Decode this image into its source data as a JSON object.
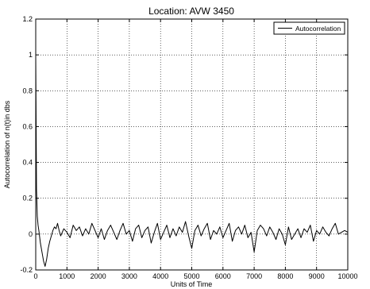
{
  "chart_data": {
    "type": "line",
    "title": "Location: AVW 3450",
    "xlabel": "Units of Time",
    "ylabel": "Autocorrelation of n(t)in dbs",
    "xlim": [
      0,
      10000
    ],
    "ylim": [
      -0.2,
      1.2
    ],
    "xticks": [
      0,
      1000,
      2000,
      3000,
      4000,
      5000,
      6000,
      7000,
      8000,
      9000,
      10000
    ],
    "yticks": [
      -0.2,
      0,
      0.2,
      0.4,
      0.6,
      0.8,
      1,
      1.2
    ],
    "xtick_labels": [
      "0",
      "1000",
      "2000",
      "3000",
      "4000",
      "5000",
      "6000",
      "7000",
      "8000",
      "9000",
      "10000"
    ],
    "ytick_labels": [
      "-0.2",
      "0",
      "0.2",
      "0.4",
      "0.6",
      "0.8",
      "1",
      "1.2"
    ],
    "grid": true,
    "legend_position": "top-right",
    "line_color": "#000000",
    "series": [
      {
        "name": "Autocorrelation",
        "x": [
          0,
          25,
          50,
          75,
          100,
          150,
          200,
          250,
          300,
          350,
          400,
          450,
          500,
          550,
          600,
          650,
          700,
          750,
          800,
          900,
          1000,
          1100,
          1200,
          1300,
          1400,
          1500,
          1600,
          1700,
          1800,
          1900,
          2000,
          2100,
          2200,
          2300,
          2400,
          2500,
          2600,
          2700,
          2800,
          2900,
          3000,
          3100,
          3200,
          3300,
          3400,
          3500,
          3600,
          3700,
          3800,
          3900,
          4000,
          4100,
          4200,
          4300,
          4400,
          4500,
          4600,
          4700,
          4800,
          4900,
          5000,
          5100,
          5200,
          5300,
          5400,
          5500,
          5600,
          5700,
          5800,
          5900,
          6000,
          6100,
          6200,
          6300,
          6400,
          6500,
          6600,
          6700,
          6800,
          6900,
          7000,
          7100,
          7200,
          7300,
          7400,
          7500,
          7600,
          7700,
          7800,
          7900,
          8000,
          8100,
          8200,
          8300,
          8400,
          8500,
          8600,
          8700,
          8800,
          8900,
          9000,
          9100,
          9200,
          9300,
          9400,
          9500,
          9600,
          9700,
          9800,
          9900,
          10000
        ],
        "y": [
          1.0,
          0.25,
          0.1,
          0.05,
          0.02,
          -0.05,
          -0.1,
          -0.15,
          -0.18,
          -0.14,
          -0.08,
          -0.04,
          -0.01,
          0.02,
          0.04,
          0.03,
          0.06,
          0.02,
          -0.01,
          0.03,
          0.01,
          -0.02,
          0.05,
          0.02,
          0.04,
          -0.01,
          0.03,
          0.0,
          0.06,
          0.02,
          -0.02,
          0.03,
          -0.03,
          0.02,
          0.05,
          0.01,
          -0.03,
          0.02,
          0.06,
          0.0,
          0.02,
          -0.04,
          0.03,
          0.05,
          -0.02,
          0.02,
          0.04,
          -0.05,
          0.01,
          0.06,
          -0.03,
          0.01,
          0.05,
          -0.02,
          0.03,
          -0.01,
          0.04,
          0.01,
          0.07,
          -0.01,
          -0.08,
          0.02,
          0.05,
          -0.01,
          0.03,
          0.06,
          -0.03,
          0.02,
          0.0,
          0.04,
          -0.02,
          0.02,
          0.06,
          -0.04,
          0.02,
          0.04,
          0.0,
          0.05,
          -0.02,
          0.01,
          -0.1,
          0.02,
          0.05,
          0.03,
          -0.01,
          0.04,
          0.01,
          -0.03,
          0.03,
          0.0,
          -0.06,
          0.04,
          -0.03,
          0.0,
          0.03,
          -0.02,
          0.03,
          0.01,
          0.05,
          -0.04,
          0.02,
          0.0,
          0.04,
          0.01,
          -0.01,
          0.03,
          0.06,
          0.0,
          0.01,
          0.02,
          0.01
        ]
      }
    ]
  }
}
